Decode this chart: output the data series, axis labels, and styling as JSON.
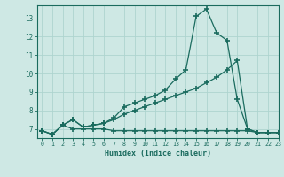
{
  "xlabel": "Humidex (Indice chaleur)",
  "background_color": "#cee8e4",
  "line_color": "#1a6b5e",
  "grid_color": "#aed4cf",
  "xlim": [
    -0.5,
    23
  ],
  "ylim": [
    6.5,
    13.7
  ],
  "xticks": [
    0,
    1,
    2,
    3,
    4,
    5,
    6,
    7,
    8,
    9,
    10,
    11,
    12,
    13,
    14,
    15,
    16,
    17,
    18,
    19,
    20,
    21,
    22,
    23
  ],
  "yticks": [
    7,
    8,
    9,
    10,
    11,
    12,
    13
  ],
  "series": [
    {
      "x": [
        0,
        1,
        2,
        3,
        4,
        5,
        6,
        7,
        8,
        9,
        10,
        11,
        12,
        13,
        14,
        15,
        16,
        17,
        18,
        19,
        20,
        21,
        22,
        23
      ],
      "y": [
        6.9,
        6.7,
        7.2,
        7.0,
        7.0,
        7.0,
        7.0,
        6.9,
        6.9,
        6.9,
        6.9,
        6.9,
        6.9,
        6.9,
        6.9,
        6.9,
        6.9,
        6.9,
        6.9,
        6.9,
        6.9,
        6.8,
        6.8,
        6.8
      ]
    },
    {
      "x": [
        0,
        1,
        2,
        3,
        4,
        5,
        6,
        7,
        8,
        9,
        10,
        11,
        12,
        13,
        14,
        15,
        16,
        17,
        18,
        19,
        20,
        21,
        22,
        23
      ],
      "y": [
        6.9,
        6.7,
        7.2,
        7.5,
        7.1,
        7.2,
        7.3,
        7.5,
        7.8,
        8.0,
        8.2,
        8.4,
        8.6,
        8.8,
        9.0,
        9.2,
        9.5,
        9.8,
        10.2,
        10.7,
        7.0,
        6.8,
        6.8,
        6.8
      ]
    },
    {
      "x": [
        0,
        1,
        2,
        3,
        4,
        5,
        6,
        7,
        8,
        9,
        10,
        11,
        12,
        13,
        14,
        15,
        16,
        17,
        18,
        19,
        20,
        21,
        22,
        23
      ],
      "y": [
        6.9,
        6.7,
        7.2,
        7.5,
        7.1,
        7.2,
        7.3,
        7.6,
        8.2,
        8.4,
        8.6,
        8.8,
        9.1,
        9.7,
        10.2,
        13.1,
        13.5,
        12.2,
        11.8,
        8.6,
        7.0,
        6.8,
        6.8,
        6.8
      ]
    }
  ]
}
